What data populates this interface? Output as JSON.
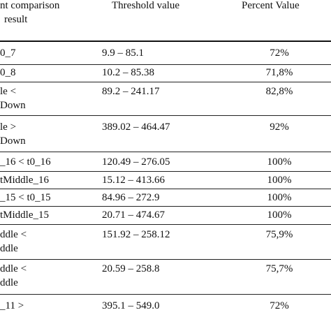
{
  "header": {
    "col1_line1": "nt comparison",
    "col1_line2": "result",
    "col2": "Threshold value",
    "col3": "Percent Value"
  },
  "rows": [
    {
      "c1a": "0_7",
      "c1b": "",
      "c2": "9.9 – 85.1",
      "c3": "72%"
    },
    {
      "c1a": "0_8",
      "c1b": "",
      "c2": "10.2 – 85.38",
      "c3": "71,8%"
    },
    {
      "c1a": "le <",
      "c1b": "Down",
      "c2": "89.2 – 241.17",
      "c3": "82,8%"
    },
    {
      "c1a": "le >",
      "c1b": "Down",
      "c2": "389.02 – 464.47",
      "c3": "92%"
    },
    {
      "c1a": "_16 < t0_16",
      "c1b": "",
      "c2": "120.49 – 276.05",
      "c3": "100%"
    },
    {
      "c1a": "tMiddle_16",
      "c1b": "",
      "c2": "15.12 – 413.66",
      "c3": "100%"
    },
    {
      "c1a": "_15 < t0_15",
      "c1b": "",
      "c2": "84.96 – 272.9",
      "c3": "100%"
    },
    {
      "c1a": "tMiddle_15",
      "c1b": "",
      "c2": "20.71 – 474.67",
      "c3": "100%"
    },
    {
      "c1a": "ddle <",
      "c1b": "ddle",
      "c2": "151.92 – 258.12",
      "c3": "75,9%"
    },
    {
      "c1a": "ddle <",
      "c1b": "ddle",
      "c2": "20.59 – 258.8",
      "c3": "75,7%"
    },
    {
      "c1a": "_11 >",
      "c1b": "",
      "c2": "395.1 – 549.0",
      "c3": "72%"
    }
  ]
}
